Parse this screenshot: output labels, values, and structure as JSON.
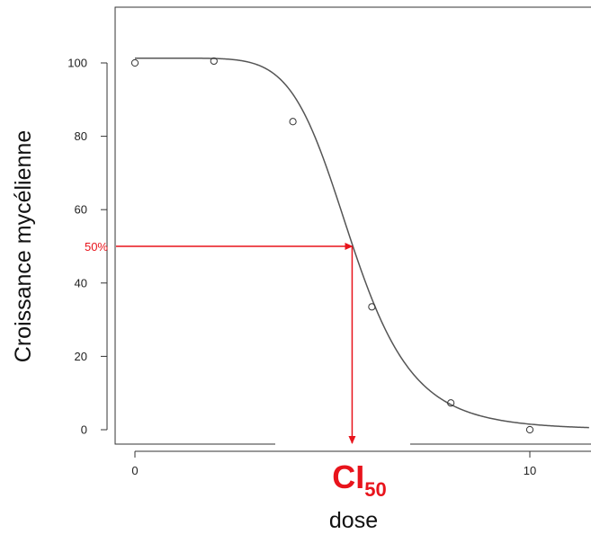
{
  "chart_data": {
    "type": "line",
    "title": "",
    "xlabel": "dose",
    "ylabel": "Croissance mycélienne",
    "xlim": [
      -0.5,
      11.5
    ],
    "ylim": [
      -5,
      113
    ],
    "x_ticks": [
      0,
      10
    ],
    "y_ticks": [
      0,
      20,
      40,
      60,
      80,
      100
    ],
    "grid": false,
    "legend": "none",
    "series": [
      {
        "kind": "points",
        "x": [
          0,
          2,
          4,
          6,
          8,
          10
        ],
        "y": [
          100,
          100.5,
          84,
          33.5,
          7.3,
          0
        ]
      },
      {
        "kind": "fitted-curve",
        "model": "log-logistic",
        "top": 101.3,
        "bottom": 0,
        "ec50": 5.5,
        "hill": 7
      }
    ],
    "annotations": {
      "half_response_label": "50%",
      "half_response_y": 50,
      "ic50_x": 5.5,
      "ic50_main": "CI",
      "ic50_sub": "50"
    },
    "colors": {
      "curve": "#555555",
      "points": "#333333",
      "axis": "#333333",
      "annotation": "#e8141c"
    }
  }
}
